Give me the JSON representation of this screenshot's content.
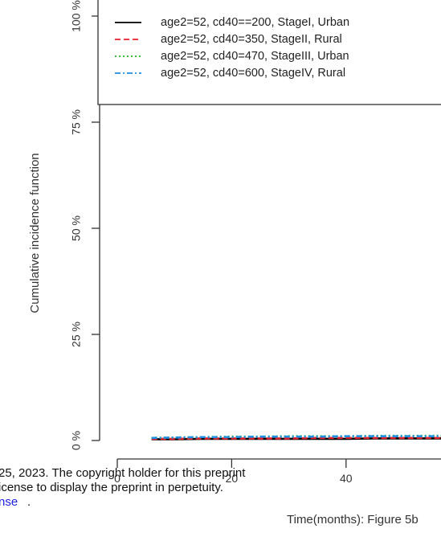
{
  "chart_data": {
    "type": "line",
    "ylabel": "Cumulative incidence function",
    "xlabel": "Time(months): Figure 5b",
    "y_ticks": [
      "0 %",
      "25 %",
      "50 %",
      "75 %",
      "100 %"
    ],
    "y_tick_values": [
      0,
      25,
      50,
      75,
      100
    ],
    "x_ticks": [
      "0",
      "20",
      "40"
    ],
    "x_tick_values": [
      0,
      20,
      40
    ],
    "xlim": [
      0,
      60
    ],
    "ylim": [
      0,
      100
    ],
    "legend_position": "top-right",
    "series": [
      {
        "name": "age2=52,  cd40==200, StageI, Urban",
        "color": "#000000",
        "dash": "solid",
        "x": [
          6,
          10,
          15,
          20,
          25,
          30,
          35,
          40,
          45,
          50,
          55,
          60
        ],
        "values": [
          0.3,
          0.3,
          0.4,
          0.4,
          0.4,
          0.4,
          0.4,
          0.4,
          0.5,
          0.5,
          0.5,
          0.5
        ]
      },
      {
        "name": "age2=52, cd40=350, StageII, Rural",
        "color": "#e8202a",
        "dash": "dashed",
        "x": [
          6,
          10,
          15,
          20,
          25,
          30,
          35,
          40,
          45,
          50,
          55,
          60
        ],
        "values": [
          0.4,
          0.4,
          0.5,
          0.5,
          0.5,
          0.5,
          0.6,
          0.6,
          0.6,
          0.6,
          0.6,
          0.6
        ]
      },
      {
        "name": "age2=52, cd40=470, StageIII, Urban",
        "color": "#22b622",
        "dash": "dotted",
        "x": [
          6,
          10,
          15,
          20,
          25,
          30,
          35,
          40,
          45,
          50,
          55,
          60
        ],
        "values": [
          0.6,
          0.7,
          0.8,
          0.9,
          0.9,
          1.0,
          1.0,
          1.0,
          1.1,
          1.1,
          1.1,
          1.1
        ]
      },
      {
        "name": "age2=52, cd40=600, StageIV, Rural",
        "color": "#1e8fe6",
        "dash": "dotdash",
        "x": [
          6,
          10,
          15,
          20,
          25,
          30,
          35,
          40,
          45,
          50,
          55,
          60
        ],
        "values": [
          0.6,
          0.7,
          0.8,
          0.8,
          0.9,
          0.9,
          0.9,
          1.0,
          1.0,
          1.0,
          1.0,
          1.0
        ]
      }
    ]
  },
  "footer": {
    "line1": "25, 2023. The copyright holder for this preprint",
    "line2": "icense to display the preprint in perpetuity.",
    "line3_link": "nse",
    "line3_tail": "."
  }
}
